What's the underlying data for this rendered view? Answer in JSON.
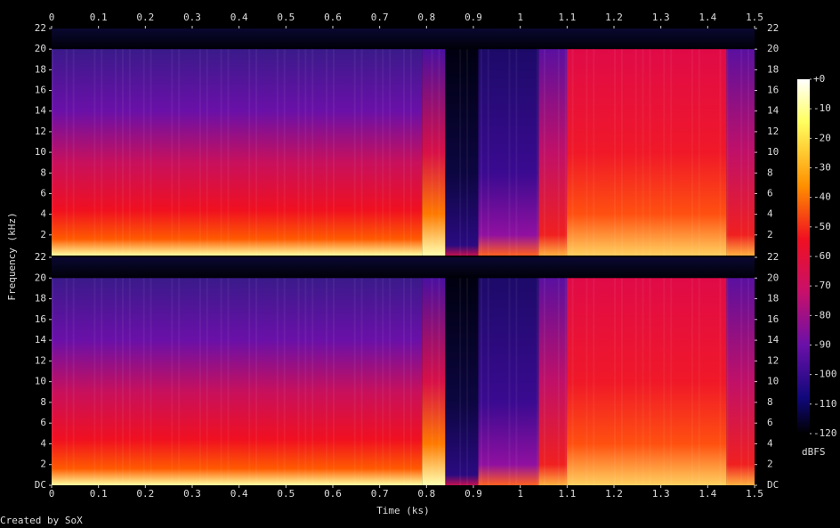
{
  "chart_data": [
    {
      "type": "spectrogram",
      "y_label": "Frequency (kHz)",
      "xlim": [
        0,
        1.5
      ],
      "xticks": [
        0,
        0.1,
        0.2,
        0.3,
        0.4,
        0.5,
        0.6,
        0.7,
        0.8,
        0.9,
        1,
        1.1,
        1.2,
        1.3,
        1.4,
        1.5
      ],
      "ylim": [
        0,
        22
      ],
      "yticks": [
        2,
        4,
        6,
        8,
        10,
        12,
        14,
        16,
        18,
        20,
        22
      ]
    },
    {
      "type": "spectrogram",
      "x_label": "Time (ks)",
      "xlim": [
        0,
        1.5
      ],
      "xticks": [
        0,
        0.1,
        0.2,
        0.3,
        0.4,
        0.5,
        0.6,
        0.7,
        0.8,
        0.9,
        1,
        1.1,
        1.2,
        1.3,
        1.4,
        1.5
      ],
      "ylim": [
        0,
        22
      ],
      "yticks": [
        {
          "value": 0,
          "label": "DC"
        },
        2,
        4,
        6,
        8,
        10,
        12,
        14,
        16,
        18,
        20,
        22
      ]
    }
  ],
  "colorbar": {
    "label": "dBFS",
    "lim": [
      -120,
      0
    ],
    "ticks": [
      {
        "value": 0,
        "label": "+0"
      },
      -10,
      -20,
      -30,
      -40,
      -50,
      -60,
      -70,
      -80,
      -90,
      -100,
      -110,
      -120
    ]
  },
  "credit": "Created by SoX"
}
